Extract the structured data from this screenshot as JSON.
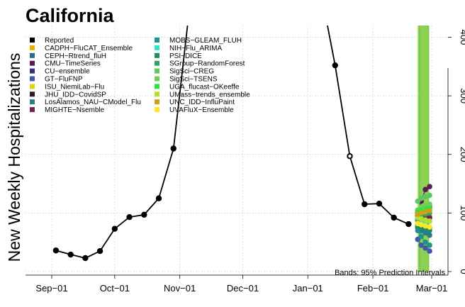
{
  "chart_data": {
    "type": "line",
    "title": "California",
    "ylabel": "New Weekly Hospitalizations",
    "xlabel": "",
    "x_ticks": [
      "Sep−01",
      "Oct−01",
      "Nov−01",
      "Dec−01",
      "Jan−01",
      "Feb−01",
      "Mar−01"
    ],
    "y_ticks": [
      "0",
      "100",
      "200",
      "300",
      "400"
    ],
    "ylim": [
      0,
      420
    ],
    "grid": true,
    "legend_position": "top-left",
    "annotation": "Bands: 95% Prediction Intervals",
    "legend": [
      {
        "name": "Reported",
        "color": "#000000"
      },
      {
        "name": "CADPH−FluCAT_Ensemble",
        "color": "#e1b100"
      },
      {
        "name": "CEPH−Rtrend_fluH",
        "color": "#31688e"
      },
      {
        "name": "CMU−TimeSeries",
        "color": "#5c1a5c"
      },
      {
        "name": "CU−ensemble",
        "color": "#3b2a7a"
      },
      {
        "name": "GT−FluFNP",
        "color": "#3f5aa8"
      },
      {
        "name": "ISU_NiemiLab−Flu",
        "color": "#e3d212"
      },
      {
        "name": "JHU_IDD−CovidSP",
        "color": "#2e1a2e"
      },
      {
        "name": "LosAlamos_NAU−CModel_Flu",
        "color": "#2a7a8c"
      },
      {
        "name": "MIGHTE−Nsemble",
        "color": "#7a1f52"
      },
      {
        "name": "MOBS−GLEAM_FLUH",
        "color": "#21918c"
      },
      {
        "name": "NIH−Flu_ARIMA",
        "color": "#2ee6c8"
      },
      {
        "name": "PSI−DICE",
        "color": "#1f8a6e"
      },
      {
        "name": "SGroup−RandomForest",
        "color": "#35a06a"
      },
      {
        "name": "SigSci−CREG",
        "color": "#5cc863"
      },
      {
        "name": "SigSci−TSENS",
        "color": "#6fcf57"
      },
      {
        "name": "UGA_flucast−OKeeffe",
        "color": "#27e83a"
      },
      {
        "name": "UMass−trends_ensemble",
        "color": "#b4de2c"
      },
      {
        "name": "UNC_IDD−InfluPaint",
        "color": "#c8a21c"
      },
      {
        "name": "UVAFluX−Ensemble",
        "color": "#fde725"
      }
    ],
    "reported": [
      {
        "date": "2022-09-03",
        "value": 36
      },
      {
        "date": "2022-09-10",
        "value": 29
      },
      {
        "date": "2022-09-17",
        "value": 23
      },
      {
        "date": "2022-09-24",
        "value": 35
      },
      {
        "date": "2022-10-01",
        "value": 73
      },
      {
        "date": "2022-10-08",
        "value": 93
      },
      {
        "date": "2022-10-15",
        "value": 97
      },
      {
        "date": "2022-10-22",
        "value": 125
      },
      {
        "date": "2022-10-29",
        "value": 210
      },
      {
        "date": "2022-11-05",
        "value": 430
      },
      {
        "date": "2023-01-14",
        "value": 352
      },
      {
        "date": "2023-01-21",
        "value": 197
      },
      {
        "date": "2023-01-28",
        "value": 115
      },
      {
        "date": "2023-02-04",
        "value": 116
      },
      {
        "date": "2023-02-11",
        "value": 92
      },
      {
        "date": "2023-02-18",
        "value": 81
      }
    ],
    "forecast_bands": {
      "start": "2023-02-22",
      "end": "2023-02-28",
      "lower": 0,
      "upper": 440
    },
    "forecasts": [
      {
        "model": "CADPH−FluCAT_Ensemble",
        "values": [
          80,
          78,
          76,
          74
        ]
      },
      {
        "model": "CEPH−Rtrend_fluH",
        "values": [
          90,
          85,
          80,
          75
        ]
      },
      {
        "model": "CMU−TimeSeries",
        "values": [
          100,
          120,
          140,
          145
        ]
      },
      {
        "model": "CU−ensemble",
        "values": [
          95,
          100,
          105,
          110
        ]
      },
      {
        "model": "GT−FluFNP",
        "values": [
          55,
          45,
          40,
          35
        ]
      },
      {
        "model": "ISU_NiemiLab−Flu",
        "values": [
          85,
          88,
          92,
          95
        ]
      },
      {
        "model": "JHU_IDD−CovidSP",
        "values": [
          98,
          95,
          93,
          92
        ]
      },
      {
        "model": "LosAlamos_NAU−CModel_Flu",
        "values": [
          75,
          70,
          66,
          62
        ]
      },
      {
        "model": "MIGHTE−Nsemble",
        "values": [
          88,
          90,
          91,
          92
        ]
      },
      {
        "model": "MOBS−GLEAM_FLUH",
        "values": [
          70,
          60,
          50,
          45
        ]
      },
      {
        "model": "NIH−Flu_ARIMA",
        "values": [
          80,
          82,
          84,
          86
        ]
      },
      {
        "model": "PSI−DICE",
        "values": [
          78,
          75,
          72,
          70
        ]
      },
      {
        "model": "SGroup−RandomForest",
        "values": [
          88,
          95,
          98,
          100
        ]
      },
      {
        "model": "SigSci−CREG",
        "values": [
          120,
          125,
          128,
          130
        ]
      },
      {
        "model": "SigSci−TSENS",
        "values": [
          105,
          110,
          112,
          115
        ]
      },
      {
        "model": "UGA_flucast−OKeeffe",
        "values": [
          102,
          104,
          106,
          108
        ]
      },
      {
        "model": "UMass−trends_ensemble",
        "values": [
          92,
          90,
          88,
          86
        ]
      },
      {
        "model": "UNC_IDD−InfluPaint",
        "values": [
          98,
          100,
          102,
          104
        ]
      },
      {
        "model": "UVAFluX−Ensemble",
        "values": [
          82,
          80,
          78,
          76
        ]
      }
    ]
  }
}
